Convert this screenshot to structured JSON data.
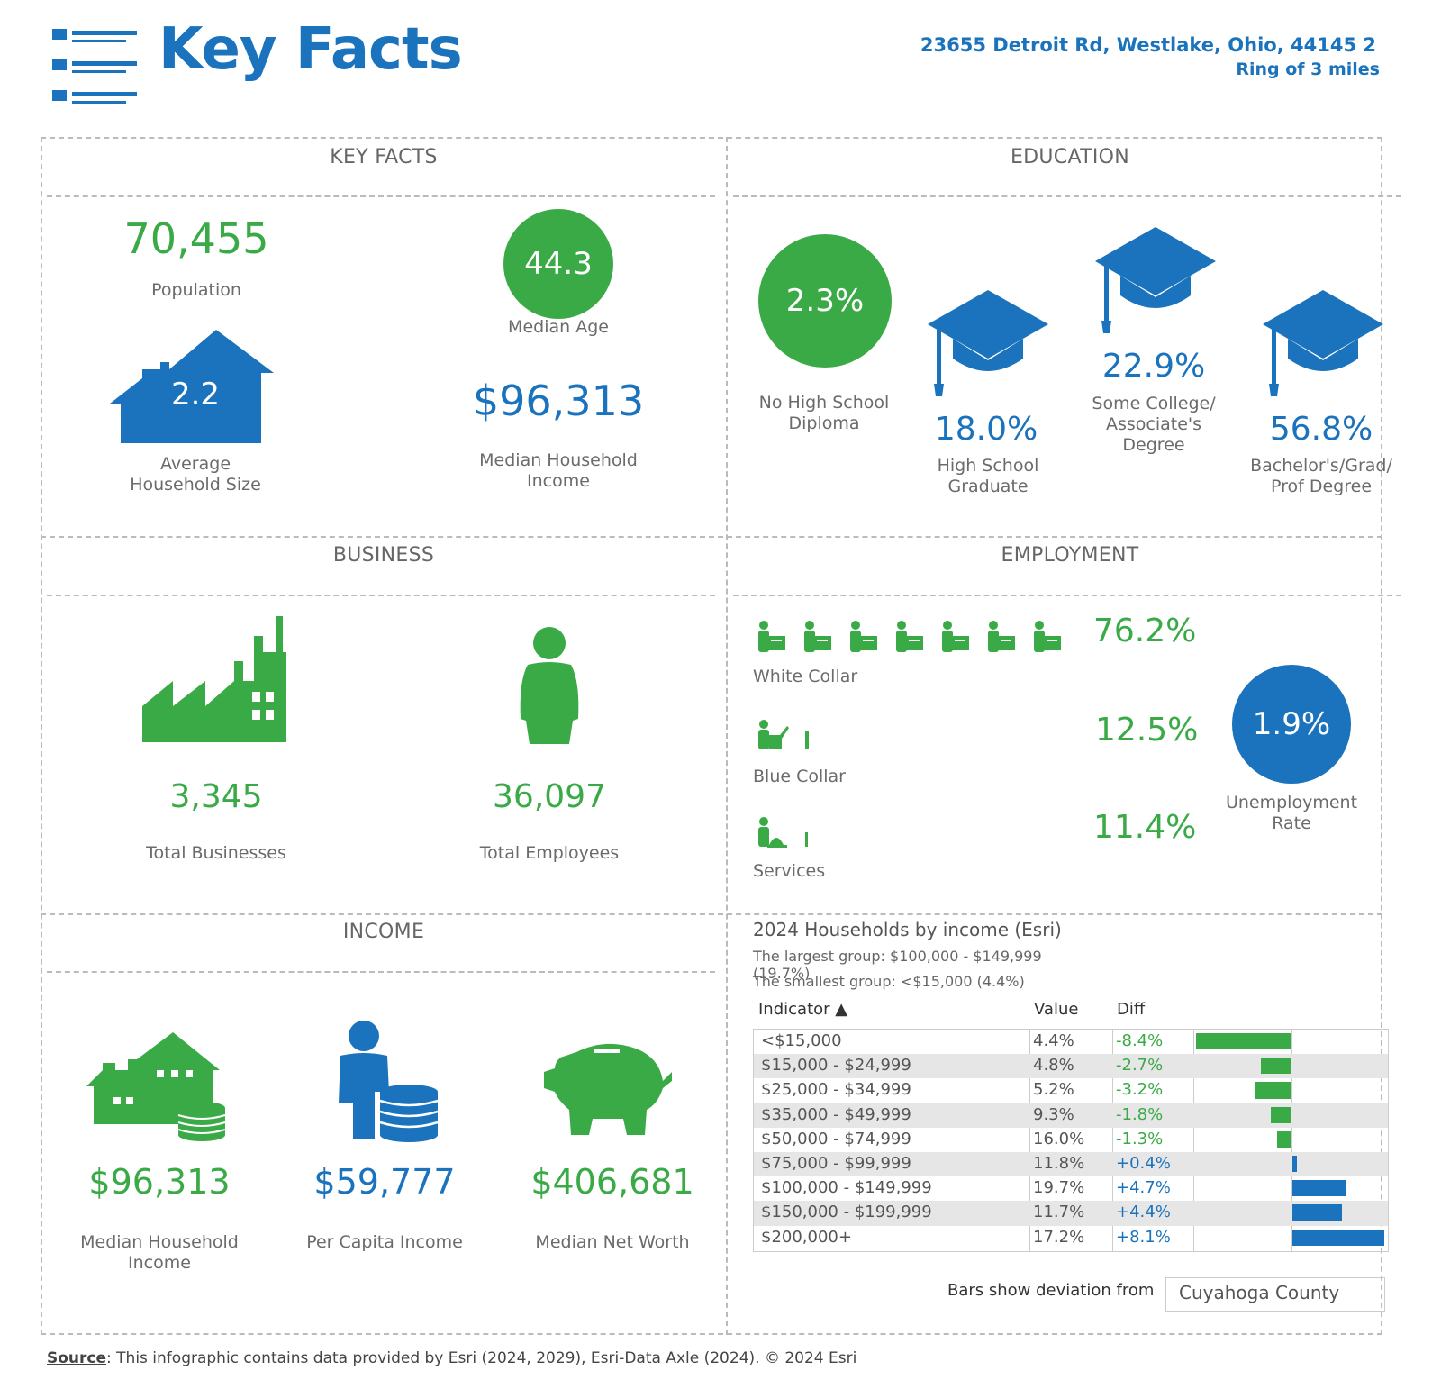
{
  "header": {
    "title": "Key Facts",
    "address": "23655 Detroit Rd, Westlake, Ohio, 44145 2",
    "ring": "Ring of 3 miles"
  },
  "key_facts": {
    "section_title": "KEY FACTS",
    "population_value": "70,455",
    "population_label": "Population",
    "median_age_value": "44.3",
    "median_age_label": "Median Age",
    "household_size_value": "2.2",
    "household_size_label_1": "Average",
    "household_size_label_2": "Household Size",
    "median_income_value": "$96,313",
    "median_income_label_1": "Median Household",
    "median_income_label_2": "Income"
  },
  "education": {
    "section_title": "EDUCATION",
    "no_hs_value": "2.3%",
    "no_hs_label_1": "No High School",
    "no_hs_label_2": "Diploma",
    "hs_value": "18.0%",
    "hs_label_1": "High School",
    "hs_label_2": "Graduate",
    "some_college_value": "22.9%",
    "some_college_label_1": "Some College/",
    "some_college_label_2": "Associate's",
    "some_college_label_3": "Degree",
    "bachelors_value": "56.8%",
    "bachelors_label_1": "Bachelor's/Grad/",
    "bachelors_label_2": "Prof Degree"
  },
  "business": {
    "section_title": "BUSINESS",
    "total_businesses_value": "3,345",
    "total_businesses_label": "Total Businesses",
    "total_employees_value": "36,097",
    "total_employees_label": "Total Employees"
  },
  "employment": {
    "section_title": "EMPLOYMENT",
    "white_collar_value": "76.2%",
    "white_collar_label": "White Collar",
    "blue_collar_value": "12.5%",
    "blue_collar_label": "Blue Collar",
    "services_value": "11.4%",
    "services_label": "Services",
    "unemployment_value": "1.9%",
    "unemployment_label_1": "Unemployment",
    "unemployment_label_2": "Rate"
  },
  "income": {
    "section_title": "INCOME",
    "median_household_income_value": "$96,313",
    "median_household_income_label_1": "Median Household",
    "median_household_income_label_2": "Income",
    "per_capita_income_value": "$59,777",
    "per_capita_income_label": "Per Capita Income",
    "median_net_worth_value": "$406,681",
    "median_net_worth_label": "Median Net Worth"
  },
  "households_table": {
    "title": "2024 Households by income (Esri)",
    "largest_group": "The largest group: $100,000 - $149,999 (19.7%)",
    "smallest_group": "The smallest group: <$15,000 (4.4%)",
    "col_indicator": "Indicator ▲",
    "col_value": "Value",
    "col_diff": "Diff",
    "footer_label": "Bars show deviation from",
    "comparison_area": "Cuyahoga County",
    "positive_color": "#1a73bc",
    "negative_color": "#3aaa47"
  },
  "chart_data": {
    "type": "bar",
    "categories": [
      "<$15,000",
      "$15,000 - $24,999",
      "$25,000 - $34,999",
      "$35,000 - $49,999",
      "$50,000 - $74,999",
      "$75,000 - $99,999",
      "$100,000 - $149,999",
      "$150,000 - $199,999",
      "$200,000+"
    ],
    "values": [
      "4.4%",
      "4.8%",
      "5.2%",
      "9.3%",
      "16.0%",
      "11.8%",
      "19.7%",
      "11.7%",
      "17.2%"
    ],
    "diffs": [
      "-8.4%",
      "-2.7%",
      "-3.2%",
      "-1.8%",
      "-1.3%",
      "+0.4%",
      "+4.7%",
      "+4.4%",
      "+8.1%"
    ],
    "diff_values": [
      -8.4,
      -2.7,
      -3.2,
      -1.8,
      -1.3,
      0.4,
      4.7,
      4.4,
      8.1
    ],
    "xlim": [
      -8.4,
      8.1
    ]
  },
  "footer": {
    "source_label": "Source",
    "source_text": ": This infographic contains data provided by Esri (2024, 2029), Esri-Data Axle (2024).  © 2024 Esri"
  }
}
